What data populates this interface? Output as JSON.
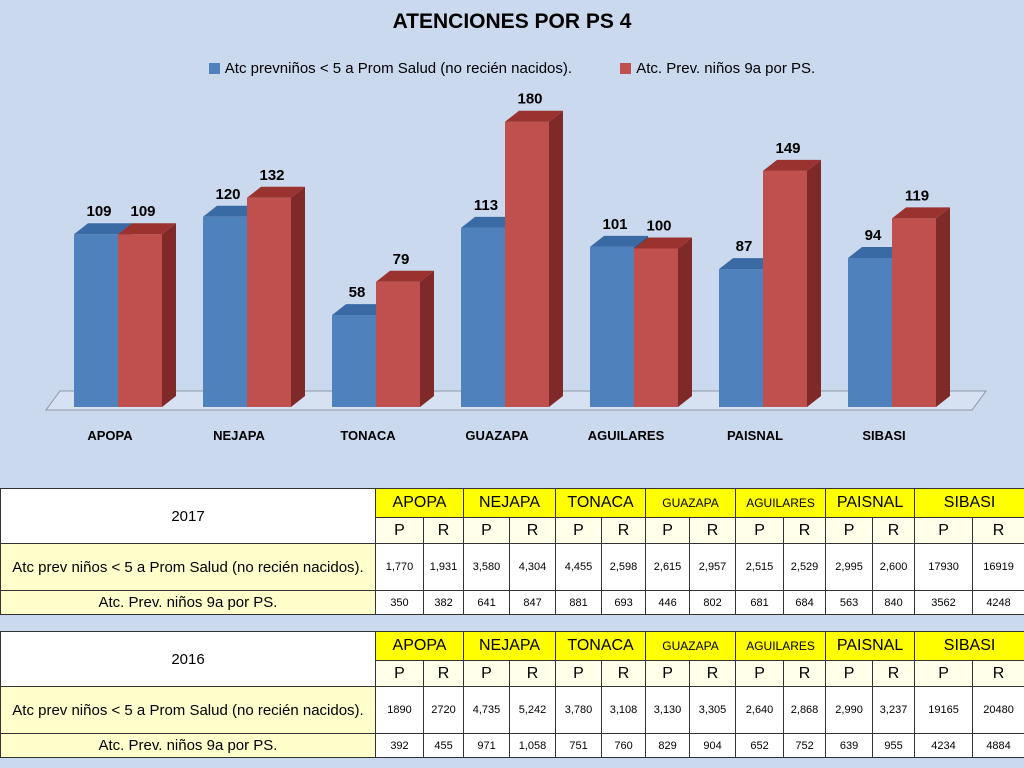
{
  "chart_data": {
    "type": "bar",
    "title": "ATENCIONES  POR PS 4",
    "categories": [
      "APOPA",
      "NEJAPA",
      "TONACA",
      "GUAZAPA",
      "AGUILARES",
      "PAISNAL",
      "SIBASI"
    ],
    "series": [
      {
        "name": "Atc prevniños < 5 a Prom Salud (no recién nacidos).",
        "values": [
          109,
          120,
          58,
          113,
          101,
          87,
          94
        ],
        "color": "#4f81bd",
        "side_color": "#2c5687",
        "top_color": "#3a6aa4"
      },
      {
        "name": "Atc. Prev. niños  9a por PS.",
        "values": [
          109,
          132,
          79,
          180,
          100,
          149,
          119
        ],
        "color": "#c0504d",
        "side_color": "#7f2a28",
        "top_color": "#9a3330"
      }
    ],
    "data_labels": true,
    "legend_position": "top",
    "grid": false
  },
  "tables": [
    {
      "year": "2017",
      "headers": [
        "APOPA",
        "NEJAPA",
        "TONACA",
        "GUAZAPA",
        "AGUILARES",
        "PAISNAL",
        "SIBASI"
      ],
      "subheaders": [
        "P",
        "R",
        "P",
        "R",
        "P",
        "R",
        "P",
        "R",
        "P",
        "R",
        "P",
        "R",
        "P",
        "R"
      ],
      "rows": [
        {
          "label": "Atc prev niños < 5 a Prom Salud (no recién nacidos).",
          "values": [
            "1,770",
            "1,931",
            "3,580",
            "4,304",
            "4,455",
            "2,598",
            "2,615",
            "2,957",
            "2,515",
            "2,529",
            "2,995",
            "2,600",
            "17930",
            "16919"
          ]
        },
        {
          "label": "Atc. Prev. niños  9a por PS.",
          "values": [
            "350",
            "382",
            "641",
            "847",
            "881",
            "693",
            "446",
            "802",
            "681",
            "684",
            "563",
            "840",
            "3562",
            "4248"
          ]
        }
      ]
    },
    {
      "year": "2016",
      "headers": [
        "APOPA",
        "NEJAPA",
        "TONACA",
        "GUAZAPA",
        "AGUILARES",
        "PAISNAL",
        "SIBASI"
      ],
      "subheaders": [
        "P",
        "R",
        "P",
        "R",
        "P",
        "R",
        "P",
        "R",
        "P",
        "R",
        "P",
        "R",
        "P",
        "R"
      ],
      "rows": [
        {
          "label": "Atc prev niños < 5 a Prom Salud (no recién nacidos).",
          "values": [
            "1890",
            "2720",
            "4,735",
            "5,242",
            "3,780",
            "3,108",
            "3,130",
            "3,305",
            "2,640",
            "2,868",
            "2,990",
            "3,237",
            "19165",
            "20480"
          ]
        },
        {
          "label": "Atc. Prev. niños  9a por PS.",
          "values": [
            "392",
            "455",
            "971",
            "1,058",
            "751",
            "760",
            "829",
            "904",
            "652",
            "752",
            "639",
            "955",
            "4234",
            "4884"
          ]
        }
      ]
    }
  ]
}
